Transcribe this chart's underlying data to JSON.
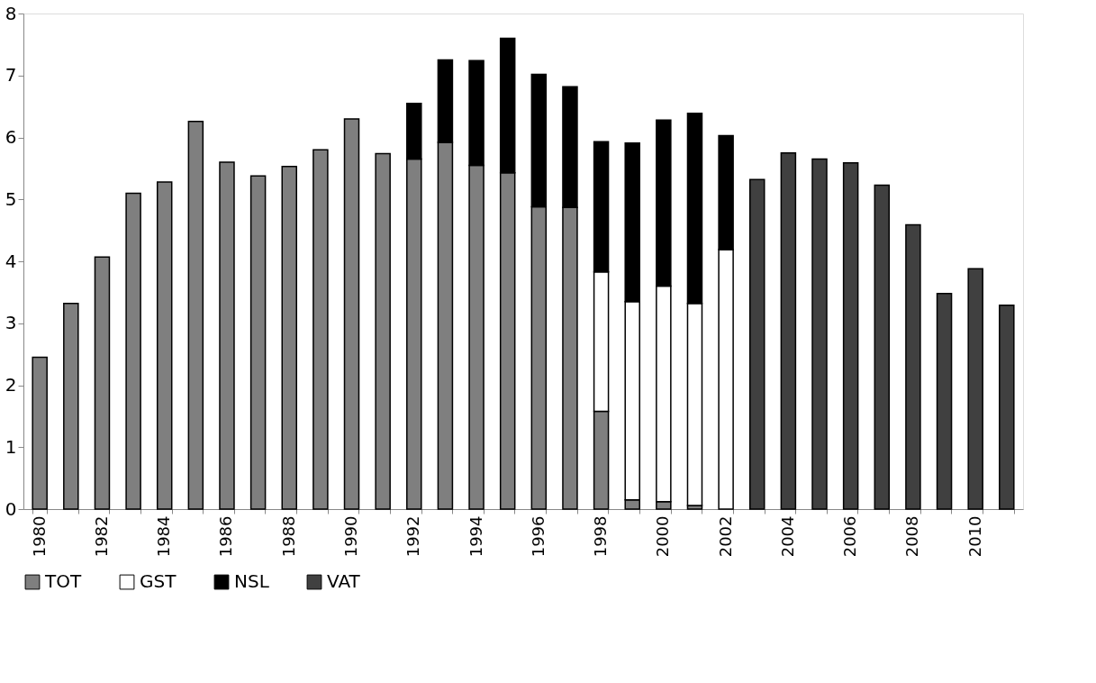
{
  "chart_data": {
    "type": "bar",
    "stacked": true,
    "categories": [
      "1980",
      null,
      "1982",
      null,
      "1984",
      null,
      "1986",
      null,
      "1988",
      null,
      "1990",
      null,
      "1992",
      null,
      "1994",
      null,
      "1996",
      null,
      "1998",
      null,
      "2000",
      null,
      "2002",
      null,
      "2004",
      null,
      "2006",
      null,
      "2008",
      null,
      "2010",
      null
    ],
    "series": [
      {
        "name": "TOT",
        "color": "#7f7f7f",
        "values": [
          2.45,
          3.32,
          4.07,
          5.1,
          5.28,
          6.26,
          5.6,
          5.38,
          5.53,
          5.8,
          6.3,
          5.74,
          5.65,
          5.92,
          5.55,
          5.43,
          4.88,
          4.87,
          1.58,
          0.15,
          0.12,
          0.06,
          null,
          null,
          null,
          null,
          null,
          null,
          null,
          null,
          null,
          null
        ]
      },
      {
        "name": "GST",
        "color": "#ffffff",
        "values": [
          null,
          null,
          null,
          null,
          null,
          null,
          null,
          null,
          null,
          null,
          null,
          null,
          null,
          null,
          null,
          null,
          null,
          null,
          2.25,
          3.2,
          3.48,
          3.26,
          4.19,
          null,
          null,
          null,
          null,
          null,
          null,
          null,
          null,
          null
        ]
      },
      {
        "name": "NSL",
        "color": "#000000",
        "values": [
          null,
          null,
          null,
          null,
          null,
          null,
          null,
          null,
          null,
          null,
          null,
          null,
          0.9,
          1.33,
          1.69,
          2.17,
          2.14,
          1.95,
          2.1,
          2.56,
          2.68,
          3.07,
          1.84,
          null,
          null,
          null,
          null,
          null,
          null,
          null,
          null,
          null
        ]
      },
      {
        "name": "VAT",
        "color": "#404040",
        "values": [
          null,
          null,
          null,
          null,
          null,
          null,
          null,
          null,
          null,
          null,
          null,
          null,
          null,
          null,
          null,
          null,
          null,
          null,
          null,
          null,
          null,
          null,
          null,
          5.32,
          5.75,
          5.65,
          5.59,
          5.23,
          4.59,
          3.48,
          3.88,
          3.29
        ]
      }
    ],
    "ylim": [
      0,
      8
    ],
    "yticks": [
      0,
      1,
      2,
      3,
      4,
      5,
      6,
      7,
      8
    ],
    "grid": false,
    "legend": "bottom"
  }
}
